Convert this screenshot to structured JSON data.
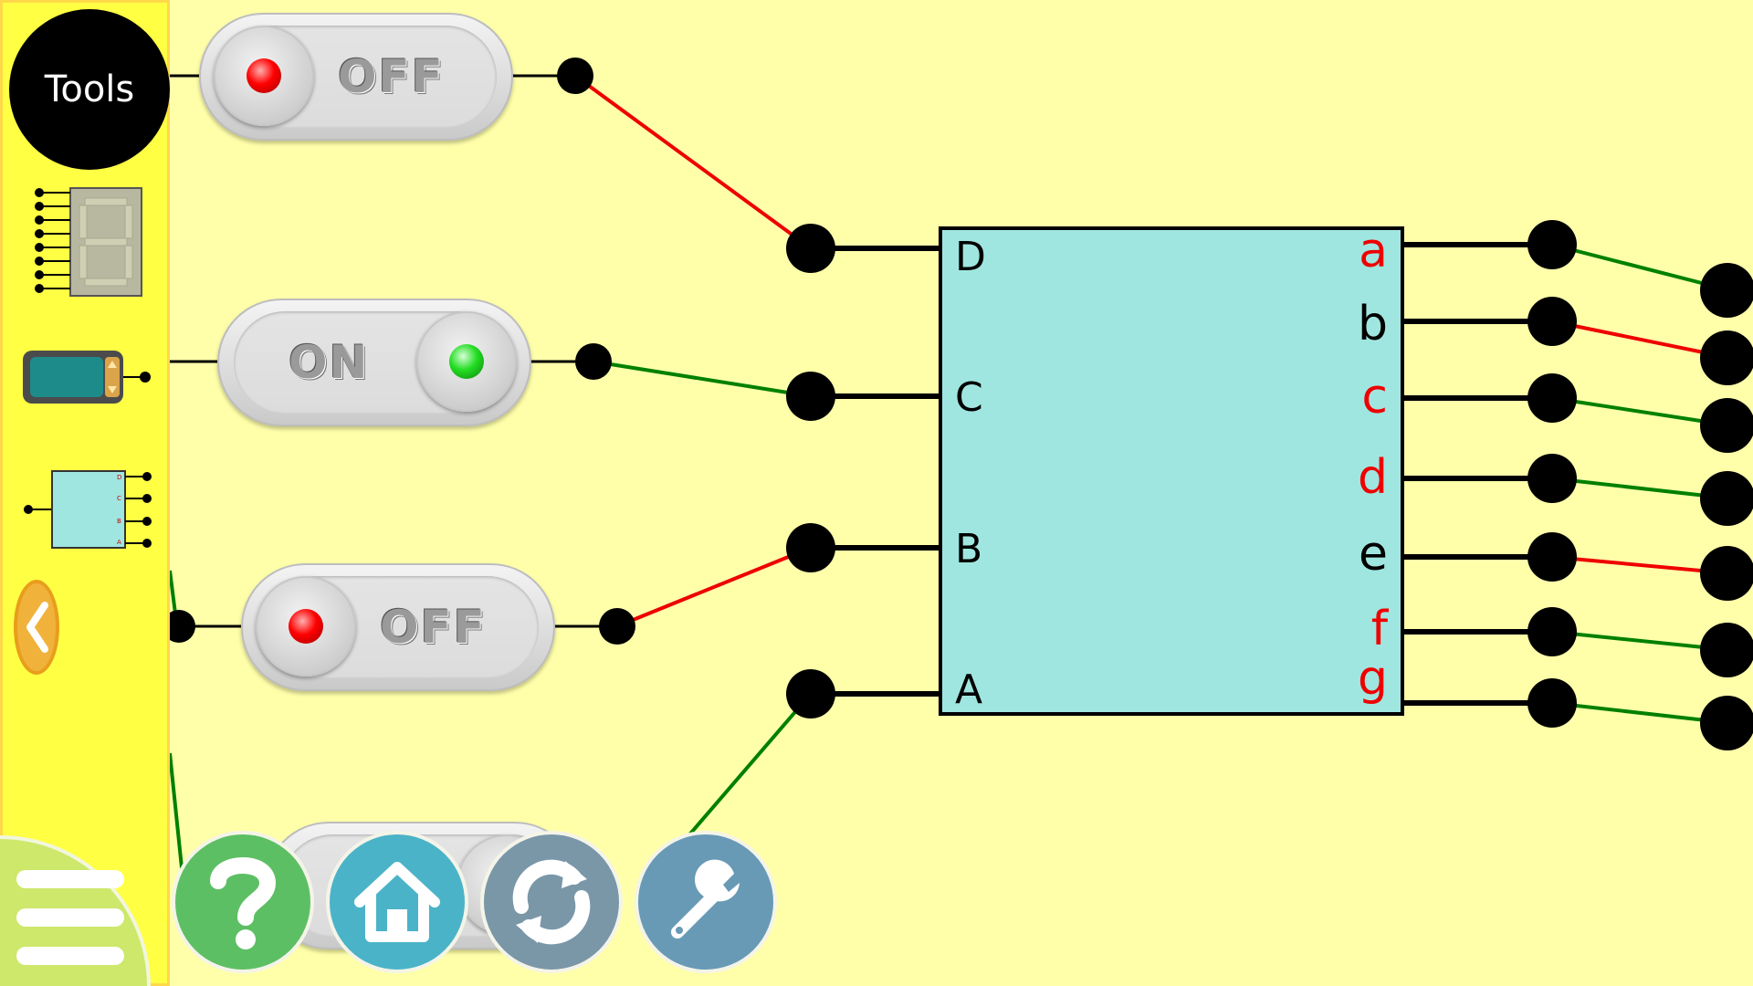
{
  "sidebar": {
    "tools_label": "Tools",
    "items": [
      {
        "name": "seven-segment-display"
      },
      {
        "name": "number-counter"
      },
      {
        "name": "bcd-decoder"
      }
    ]
  },
  "switches": [
    {
      "state": "OFF",
      "led": "red"
    },
    {
      "state": "ON",
      "led": "green"
    },
    {
      "state": "OFF",
      "led": "red"
    }
  ],
  "decoder": {
    "inputs": [
      "D",
      "C",
      "B",
      "A"
    ],
    "outputs": [
      "a",
      "b",
      "c",
      "d",
      "e",
      "f",
      "g"
    ],
    "output_active": [
      true,
      false,
      true,
      true,
      false,
      true,
      true
    ],
    "fill_color": "#a0e6e0"
  },
  "wire_colors": {
    "high": "#008000",
    "low": "#ee0000"
  },
  "bottom_buttons": [
    {
      "name": "help",
      "color": "#5dbf64"
    },
    {
      "name": "home",
      "color": "#4bb3c8"
    },
    {
      "name": "reset",
      "color": "#7a97a8"
    },
    {
      "name": "settings",
      "color": "#689ab6"
    }
  ]
}
